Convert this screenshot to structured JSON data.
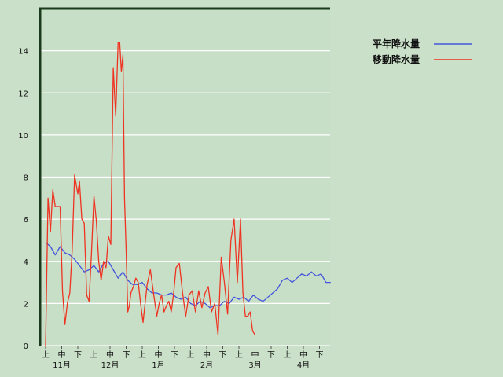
{
  "chart_data": {
    "type": "line",
    "title": "",
    "xlabel": "",
    "ylabel": "",
    "ylim": [
      0,
      16
    ],
    "yticks": [
      0,
      2,
      4,
      6,
      8,
      10,
      12,
      14
    ],
    "grid": true,
    "legend_position": "top-right",
    "x_sub_labels": [
      "上",
      "中",
      "下",
      "上",
      "中",
      "下",
      "上",
      "中",
      "下",
      "上",
      "中",
      "下",
      "上",
      "中",
      "下",
      "上",
      "中",
      "下"
    ],
    "months": [
      "11月",
      "12月",
      "1月",
      "2月",
      "3月",
      "4月"
    ],
    "colors": {
      "background": "#cae0c8",
      "plot_bg": "#c8dfc7",
      "grid": "#ffffff",
      "axis": "#1b3a1b"
    },
    "series": [
      {
        "name": "平年降水量",
        "color": "#4455dd",
        "x": [
          0.0,
          0.3,
          0.6,
          0.9,
          1.2,
          1.5,
          1.8,
          2.1,
          2.4,
          2.7,
          3.0,
          3.3,
          3.6,
          3.9,
          4.2,
          4.5,
          4.8,
          5.1,
          5.4,
          5.7,
          6.0,
          6.3,
          6.6,
          6.9,
          7.2,
          7.5,
          7.8,
          8.1,
          8.4,
          8.7,
          9.0,
          9.3,
          9.6,
          9.9,
          10.2,
          10.5,
          10.8,
          11.1,
          11.4,
          11.7,
          12.0,
          12.3,
          12.6,
          12.9,
          13.2,
          13.5,
          13.8,
          14.1,
          14.4,
          14.7,
          15.0,
          15.3,
          15.6,
          15.9,
          16.2,
          16.5,
          16.8,
          17.1,
          17.4,
          17.7
        ],
        "values": [
          4.9,
          4.7,
          4.3,
          4.7,
          4.4,
          4.3,
          4.1,
          3.8,
          3.5,
          3.6,
          3.8,
          3.5,
          3.9,
          4.0,
          3.6,
          3.2,
          3.5,
          3.1,
          2.9,
          2.9,
          3.0,
          2.7,
          2.5,
          2.5,
          2.4,
          2.4,
          2.5,
          2.3,
          2.2,
          2.3,
          2.0,
          1.9,
          2.1,
          2.0,
          1.8,
          1.9,
          1.9,
          2.1,
          2.0,
          2.3,
          2.2,
          2.3,
          2.1,
          2.4,
          2.2,
          2.1,
          2.3,
          2.5,
          2.7,
          3.1,
          3.2,
          3.0,
          3.2,
          3.4,
          3.3,
          3.5,
          3.3,
          3.4,
          3.0,
          3.0
        ]
      },
      {
        "name": "移動降水量",
        "color": "#ee3322",
        "x": [
          0.0,
          0.15,
          0.3,
          0.45,
          0.6,
          0.9,
          1.05,
          1.2,
          1.35,
          1.5,
          1.65,
          1.8,
          2.0,
          2.1,
          2.25,
          2.4,
          2.55,
          2.7,
          2.85,
          3.0,
          3.15,
          3.3,
          3.45,
          3.6,
          3.75,
          3.9,
          4.05,
          4.2,
          4.35,
          4.5,
          4.6,
          4.7,
          4.8,
          4.9,
          5.0,
          5.1,
          5.2,
          5.3,
          5.45,
          5.6,
          5.75,
          5.9,
          6.05,
          6.3,
          6.5,
          6.7,
          6.9,
          7.05,
          7.2,
          7.35,
          7.5,
          7.65,
          7.8,
          7.95,
          8.1,
          8.3,
          8.5,
          8.7,
          8.9,
          9.1,
          9.3,
          9.5,
          9.7,
          9.9,
          10.1,
          10.3,
          10.5,
          10.7,
          10.9,
          11.1,
          11.3,
          11.5,
          11.7,
          11.9,
          12.1,
          12.25,
          12.4,
          12.55,
          12.7,
          12.85,
          13.0,
          13.1,
          13.2,
          13.3,
          13.4,
          13.55,
          13.7,
          13.85,
          14.0
        ],
        "values": [
          0,
          7.0,
          5.4,
          7.4,
          6.6,
          6.6,
          2.6,
          1.0,
          2.0,
          2.5,
          4.5,
          8.1,
          7.2,
          7.8,
          6.0,
          5.8,
          2.4,
          2.1,
          4.4,
          7.1,
          5.9,
          4.0,
          3.1,
          4.0,
          3.7,
          5.2,
          4.8,
          13.2,
          10.9,
          14.4,
          14.4,
          13.0,
          13.8,
          7.0,
          4.5,
          1.6,
          1.9,
          2.5,
          2.8,
          3.2,
          3.0,
          2.0,
          1.1,
          2.9,
          3.6,
          2.5,
          1.4,
          2.0,
          2.4,
          1.6,
          1.9,
          2.1,
          1.6,
          2.5,
          3.7,
          3.9,
          2.5,
          1.4,
          2.4,
          2.6,
          1.6,
          2.6,
          1.8,
          2.5,
          2.8,
          1.6,
          2.0,
          0.5,
          4.2,
          3.0,
          1.5,
          5.0,
          6.0,
          3.0,
          6.0,
          2.5,
          1.4,
          1.4,
          1.6,
          0.7,
          0.5,
          null,
          null,
          null,
          null,
          null,
          null,
          null,
          null
        ]
      }
    ]
  }
}
